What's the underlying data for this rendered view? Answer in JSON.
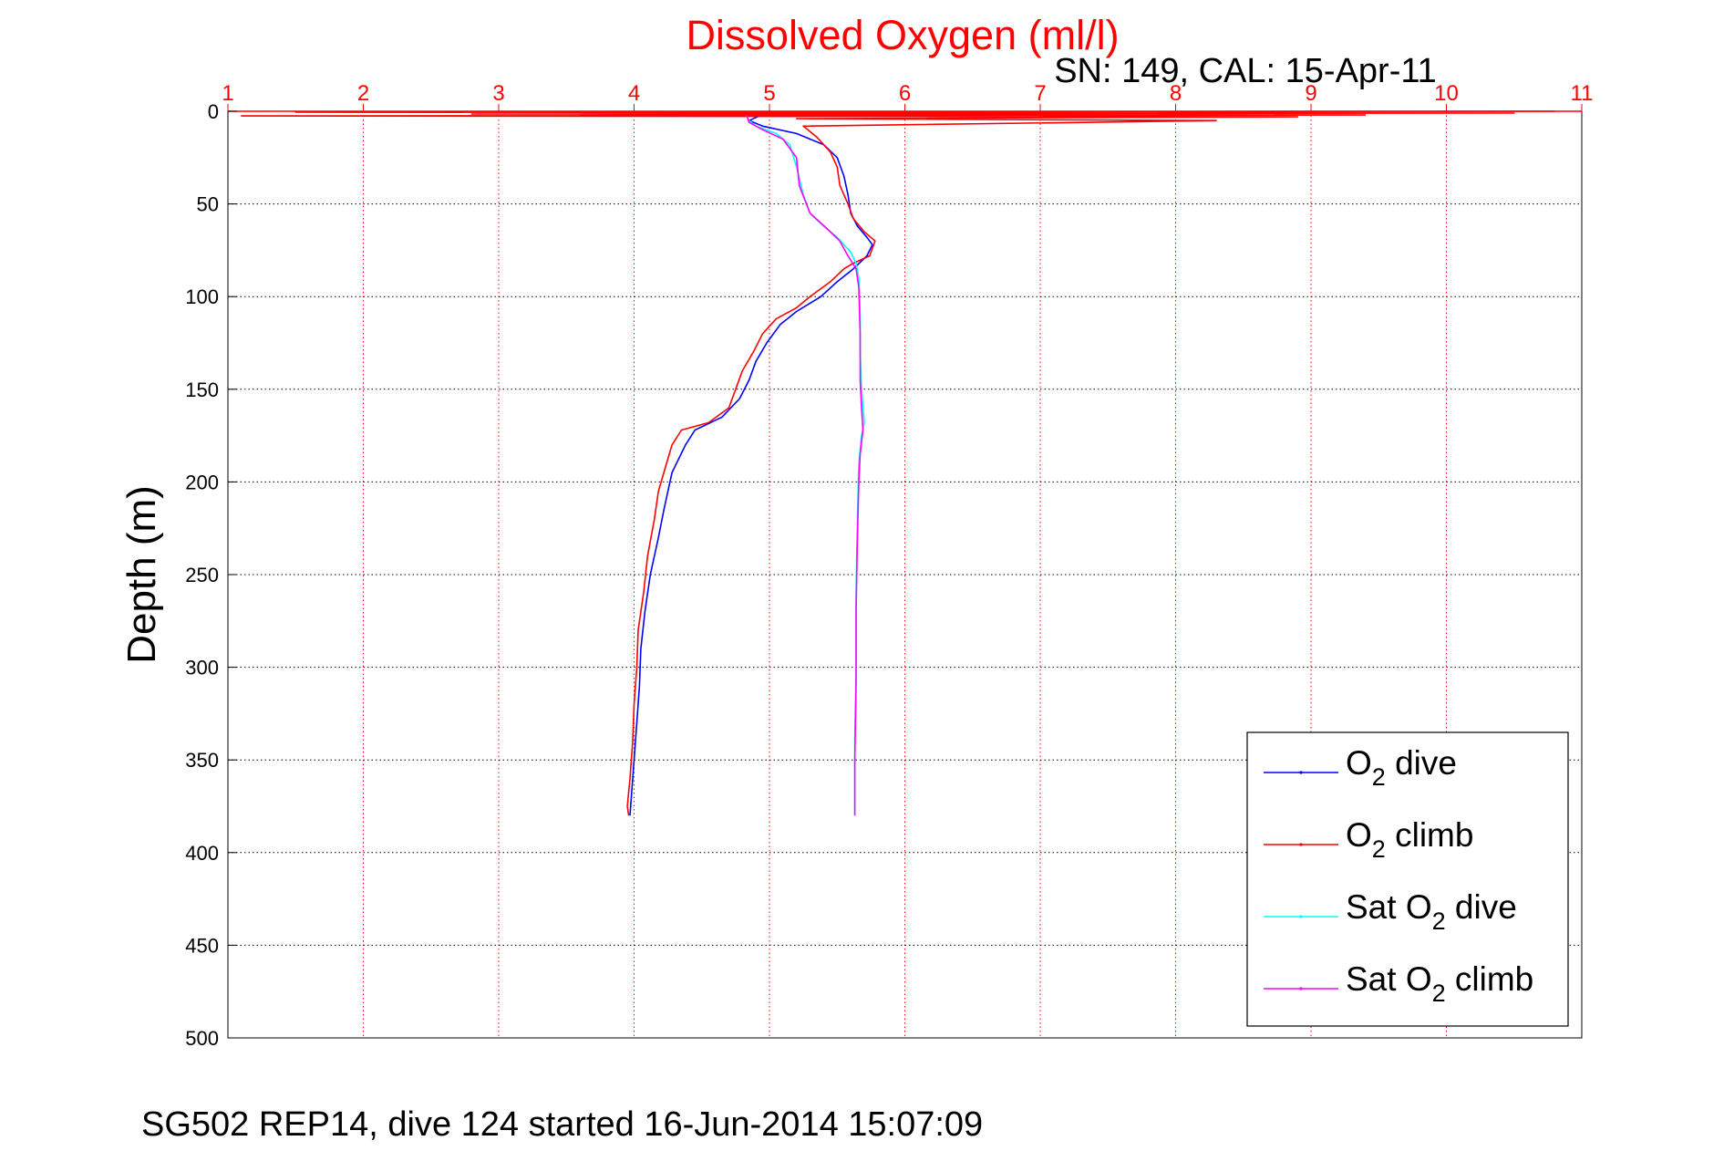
{
  "chart_data": {
    "type": "line",
    "title": "Dissolved Oxygen (ml/l)",
    "subtitle": "SN: 149, CAL: 15-Apr-11",
    "ylabel": "Depth (m)",
    "xlabel": "",
    "caption": "SG502 REP14, dive 124 started 16-Jun-2014 15:07:09",
    "xlim": [
      1,
      11
    ],
    "ylim": [
      0,
      500
    ],
    "y_reversed": true,
    "x_axis_position": "top",
    "x_ticks": [
      "1",
      "2",
      "3",
      "4",
      "5",
      "6",
      "7",
      "8",
      "9",
      "10",
      "11"
    ],
    "y_ticks": [
      "0",
      "50",
      "100",
      "150",
      "200",
      "250",
      "300",
      "350",
      "400",
      "450",
      "500"
    ],
    "grid": true,
    "legend_position": "bottom-right",
    "series": [
      {
        "name_main": "O",
        "name_sub": "2",
        "name_rest": " dive",
        "color": "#0000ff",
        "points": [
          [
            5.0,
            0
          ],
          [
            4.85,
            5
          ],
          [
            4.95,
            8
          ],
          [
            5.2,
            12
          ],
          [
            5.4,
            18
          ],
          [
            5.5,
            25
          ],
          [
            5.55,
            35
          ],
          [
            5.58,
            45
          ],
          [
            5.6,
            55
          ],
          [
            5.65,
            62
          ],
          [
            5.72,
            68
          ],
          [
            5.76,
            72
          ],
          [
            5.72,
            78
          ],
          [
            5.62,
            85
          ],
          [
            5.5,
            92
          ],
          [
            5.38,
            100
          ],
          [
            5.2,
            108
          ],
          [
            5.08,
            115
          ],
          [
            4.98,
            125
          ],
          [
            4.9,
            135
          ],
          [
            4.85,
            145
          ],
          [
            4.78,
            155
          ],
          [
            4.65,
            165
          ],
          [
            4.45,
            172
          ],
          [
            4.38,
            180
          ],
          [
            4.28,
            195
          ],
          [
            4.22,
            215
          ],
          [
            4.18,
            230
          ],
          [
            4.12,
            250
          ],
          [
            4.08,
            270
          ],
          [
            4.05,
            290
          ],
          [
            4.04,
            310
          ],
          [
            4.02,
            330
          ],
          [
            4.0,
            350
          ],
          [
            3.98,
            370
          ],
          [
            3.97,
            380
          ]
        ]
      },
      {
        "name_main": "O",
        "name_sub": "2",
        "name_rest": " climb",
        "color": "#ff0000",
        "points": [
          [
            10.8,
            0
          ],
          [
            1.5,
            0.5
          ],
          [
            10.5,
            1
          ],
          [
            2.8,
            1.5
          ],
          [
            9.4,
            2
          ],
          [
            1.1,
            2.5
          ],
          [
            8.9,
            3
          ],
          [
            5.2,
            4
          ],
          [
            8.3,
            5
          ],
          [
            5.25,
            8
          ],
          [
            5.35,
            14
          ],
          [
            5.45,
            22
          ],
          [
            5.5,
            30
          ],
          [
            5.52,
            40
          ],
          [
            5.58,
            50
          ],
          [
            5.62,
            58
          ],
          [
            5.7,
            65
          ],
          [
            5.78,
            70
          ],
          [
            5.74,
            78
          ],
          [
            5.62,
            82
          ],
          [
            5.55,
            85
          ],
          [
            5.45,
            92
          ],
          [
            5.3,
            100
          ],
          [
            5.2,
            106
          ],
          [
            5.05,
            112
          ],
          [
            4.95,
            120
          ],
          [
            4.88,
            130
          ],
          [
            4.8,
            140
          ],
          [
            4.75,
            150
          ],
          [
            4.7,
            160
          ],
          [
            4.55,
            168
          ],
          [
            4.35,
            172
          ],
          [
            4.28,
            180
          ],
          [
            4.24,
            190
          ],
          [
            4.18,
            205
          ],
          [
            4.15,
            220
          ],
          [
            4.1,
            240
          ],
          [
            4.07,
            260
          ],
          [
            4.03,
            280
          ],
          [
            4.02,
            300
          ],
          [
            4.0,
            320
          ],
          [
            3.99,
            340
          ],
          [
            3.97,
            360
          ],
          [
            3.95,
            375
          ],
          [
            3.96,
            380
          ]
        ]
      },
      {
        "name_main": "Sat O",
        "name_sub": "2",
        "name_rest": " dive",
        "color": "#00ffff",
        "points": [
          [
            4.85,
            5
          ],
          [
            4.9,
            8
          ],
          [
            5.05,
            12
          ],
          [
            5.15,
            18
          ],
          [
            5.2,
            30
          ],
          [
            5.25,
            45
          ],
          [
            5.3,
            55
          ],
          [
            5.4,
            62
          ],
          [
            5.5,
            68
          ],
          [
            5.6,
            76
          ],
          [
            5.64,
            82
          ],
          [
            5.66,
            90
          ],
          [
            5.67,
            110
          ],
          [
            5.67,
            130
          ],
          [
            5.68,
            150
          ],
          [
            5.7,
            168
          ],
          [
            5.68,
            175
          ],
          [
            5.66,
            190
          ],
          [
            5.65,
            220
          ],
          [
            5.64,
            260
          ],
          [
            5.64,
            300
          ],
          [
            5.63,
            340
          ],
          [
            5.63,
            380
          ]
        ]
      },
      {
        "name_main": "Sat O",
        "name_sub": "2",
        "name_rest": " climb",
        "color": "#ff00ff",
        "points": [
          [
            4.83,
            2
          ],
          [
            4.85,
            6
          ],
          [
            4.95,
            10
          ],
          [
            5.1,
            15
          ],
          [
            5.2,
            25
          ],
          [
            5.22,
            40
          ],
          [
            5.3,
            55
          ],
          [
            5.42,
            63
          ],
          [
            5.52,
            70
          ],
          [
            5.58,
            78
          ],
          [
            5.64,
            85
          ],
          [
            5.66,
            95
          ],
          [
            5.67,
            120
          ],
          [
            5.67,
            145
          ],
          [
            5.68,
            160
          ],
          [
            5.69,
            172
          ],
          [
            5.67,
            185
          ],
          [
            5.66,
            200
          ],
          [
            5.65,
            230
          ],
          [
            5.64,
            270
          ],
          [
            5.64,
            310
          ],
          [
            5.63,
            350
          ],
          [
            5.63,
            380
          ]
        ]
      }
    ]
  }
}
